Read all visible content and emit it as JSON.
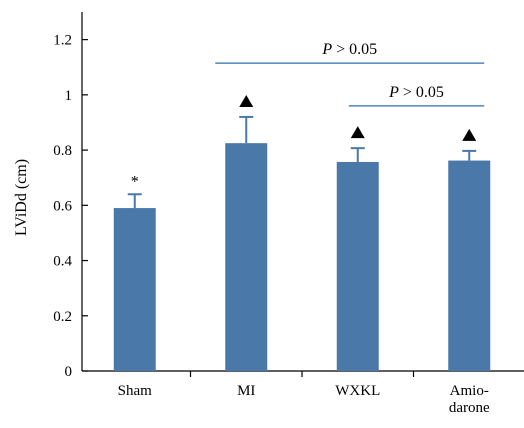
{
  "chart_data": {
    "type": "bar",
    "categories": [
      "Sham",
      "MI",
      "WXKL",
      "Amio-darone"
    ],
    "category_label_lines": [
      [
        "Sham"
      ],
      [
        "MI"
      ],
      [
        "WXKL"
      ],
      [
        "Amio-",
        "darone"
      ]
    ],
    "values": [
      0.59,
      0.825,
      0.757,
      0.762
    ],
    "errors": [
      0.05,
      0.095,
      0.05,
      0.035
    ],
    "markers": [
      "*",
      "▲",
      "▲",
      "▲"
    ],
    "title": "",
    "xlabel": "",
    "ylabel": "LViDd (cm)",
    "ylim": [
      0,
      1.3
    ],
    "yticks": [
      0,
      0.2,
      0.4,
      0.6,
      0.8,
      1,
      1.2
    ],
    "ytick_labels": [
      "0",
      "0.2",
      "0.4",
      "0.6",
      "0.8",
      "1",
      "1.2"
    ],
    "bar_color": "#4a78a8",
    "significance": [
      {
        "from": 1,
        "to": 3,
        "text_italic": "P",
        "text_rest": " > 0.05"
      },
      {
        "from": 2,
        "to": 3,
        "text_italic": "P",
        "text_rest": " > 0.05"
      }
    ],
    "significance_line_color": "#2f6eb0",
    "grid": false,
    "legend": "none"
  }
}
